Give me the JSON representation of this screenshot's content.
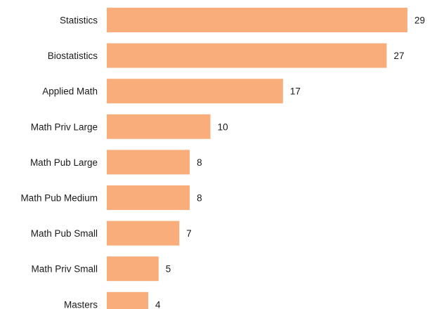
{
  "chart_data": {
    "type": "bar",
    "orientation": "horizontal",
    "categories": [
      "Statistics",
      "Biostatistics",
      "Applied Math",
      "Math Priv Large",
      "Math Pub Large",
      "Math Pub Medium",
      "Math Pub Small",
      "Math Priv Small",
      "Masters"
    ],
    "values": [
      29,
      27,
      17,
      10,
      8,
      8,
      7,
      5,
      4
    ],
    "data_labels": [
      "29",
      "27",
      "17",
      "10",
      "8",
      "8",
      "7",
      "5",
      "4"
    ],
    "title": "",
    "xlabel": "",
    "ylabel": "",
    "xlim": [
      0,
      29
    ],
    "grid": false,
    "legend": "none",
    "bar_color": "#f9ad7b"
  }
}
